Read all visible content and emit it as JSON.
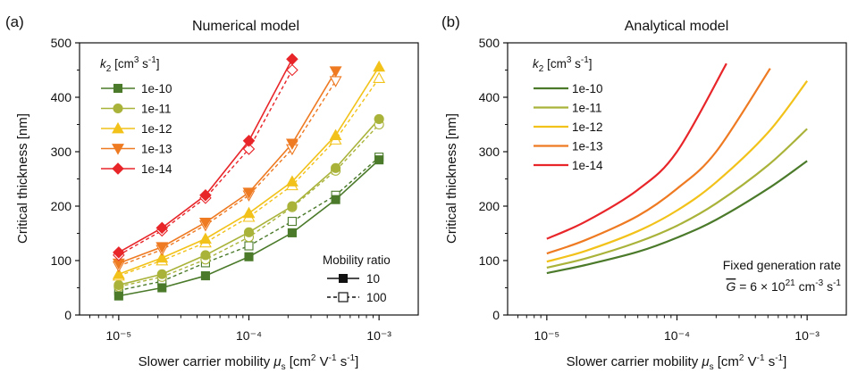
{
  "panels": {
    "a": {
      "label": "(a)",
      "title": "Numerical model",
      "ylabel": "Critical thickness [nm]",
      "xlabel": "Slower carrier mobility μ_s [cm² V⁻¹ s⁻¹]",
      "legend_title": "k₂ [cm³ s⁻¹]",
      "mobility_legend_title": "Mobility ratio",
      "mobility_entries": [
        "10",
        "100"
      ]
    },
    "b": {
      "label": "(b)",
      "title": "Analytical model",
      "ylabel": "Critical thickness [nm]",
      "xlabel": "Slower carrier mobility μ_s [cm² V⁻¹ s⁻¹]",
      "legend_title": "k₂ [cm³ s⁻¹]",
      "note_line1": "Fixed generation rate",
      "note_line2": "G̅ = 6 × 10²¹ cm⁻³ s⁻¹"
    }
  },
  "chart_data": [
    {
      "type": "line",
      "title": "Numerical model",
      "xlabel": "Slower carrier mobility μ_s [cm² V⁻¹ s⁻¹]",
      "ylabel": "Critical thickness [nm]",
      "xscale": "log",
      "xlim": [
        5e-06,
        0.002
      ],
      "ylim": [
        0,
        500
      ],
      "xticks": [
        "10⁻⁵",
        "10⁻⁴",
        "10⁻³"
      ],
      "yticks": [
        0,
        100,
        200,
        300,
        400,
        500
      ],
      "legend": "top-left",
      "series": [
        {
          "name": "1e-10",
          "color": "#4a7a2a",
          "marker": "square",
          "x": [
            1e-05,
            2.15e-05,
            4.64e-05,
            0.0001,
            0.000215,
            0.000464,
            0.001
          ],
          "ratio10": [
            35,
            50,
            72,
            107,
            151,
            212,
            285
          ],
          "ratio100": [
            45,
            62,
            96,
            127,
            172,
            220,
            290
          ]
        },
        {
          "name": "1e-11",
          "color": "#a9b33a",
          "marker": "circle",
          "x": [
            1e-05,
            2.15e-05,
            4.64e-05,
            0.0001,
            0.000215,
            0.000464,
            0.001
          ],
          "ratio10": [
            55,
            75,
            110,
            152,
            200,
            270,
            360
          ],
          "ratio100": [
            52,
            70,
            102,
            143,
            198,
            265,
            350
          ]
        },
        {
          "name": "1e-12",
          "color": "#f2c21a",
          "marker": "triangle-up",
          "x": [
            1e-05,
            2.15e-05,
            4.64e-05,
            0.0001,
            0.000215,
            0.000464,
            0.001
          ],
          "ratio10": [
            75,
            105,
            140,
            187,
            245,
            330,
            456
          ],
          "ratio100": [
            72,
            100,
            133,
            180,
            238,
            322,
            435
          ]
        },
        {
          "name": "1e-13",
          "color": "#ee7a22",
          "marker": "triangle-down",
          "x": [
            1e-05,
            2.15e-05,
            4.64e-05,
            0.0001,
            0.000215,
            0.000464
          ],
          "ratio10": [
            95,
            125,
            170,
            225,
            315,
            448
          ],
          "ratio100": [
            90,
            120,
            165,
            220,
            305,
            430
          ]
        },
        {
          "name": "1e-14",
          "color": "#e8262a",
          "marker": "diamond",
          "x": [
            1e-05,
            2.15e-05,
            4.64e-05,
            0.0001,
            0.000215
          ],
          "ratio10": [
            115,
            160,
            220,
            320,
            470
          ],
          "ratio100": [
            110,
            155,
            215,
            305,
            450
          ]
        }
      ]
    },
    {
      "type": "line",
      "title": "Analytical model",
      "xlabel": "Slower carrier mobility μ_s [cm² V⁻¹ s⁻¹]",
      "ylabel": "Critical thickness [nm]",
      "xscale": "log",
      "xlim": [
        5e-06,
        0.002
      ],
      "ylim": [
        0,
        500
      ],
      "xticks": [
        "10⁻⁵",
        "10⁻⁴",
        "10⁻³"
      ],
      "yticks": [
        0,
        100,
        200,
        300,
        400,
        500
      ],
      "legend": "top-left",
      "series": [
        {
          "name": "1e-10",
          "color": "#4a7a2a",
          "x": [
            1e-05,
            2e-05,
            5e-05,
            0.0001,
            0.0002,
            0.0005,
            0.001
          ],
          "values": [
            77,
            92,
            116,
            142,
            175,
            232,
            283
          ]
        },
        {
          "name": "1e-11",
          "color": "#a9b33a",
          "x": [
            1e-05,
            2e-05,
            5e-05,
            0.0001,
            0.0002,
            0.0005,
            0.001
          ],
          "values": [
            87,
            104,
            134,
            164,
            205,
            275,
            342
          ]
        },
        {
          "name": "1e-12",
          "color": "#f2c21a",
          "x": [
            1e-05,
            2e-05,
            5e-05,
            0.0001,
            0.0002,
            0.0005,
            0.001
          ],
          "values": [
            98,
            118,
            154,
            192,
            244,
            335,
            430
          ]
        },
        {
          "name": "1e-13",
          "color": "#ee7a22",
          "x": [
            1e-05,
            2e-05,
            5e-05,
            0.0001,
            0.0002,
            0.00052
          ],
          "values": [
            113,
            138,
            182,
            232,
            300,
            453
          ]
        },
        {
          "name": "1e-14",
          "color": "#e8262a",
          "x": [
            1e-05,
            2e-05,
            5e-05,
            0.0001,
            0.00024
          ],
          "values": [
            140,
            172,
            230,
            300,
            462
          ]
        }
      ]
    }
  ]
}
